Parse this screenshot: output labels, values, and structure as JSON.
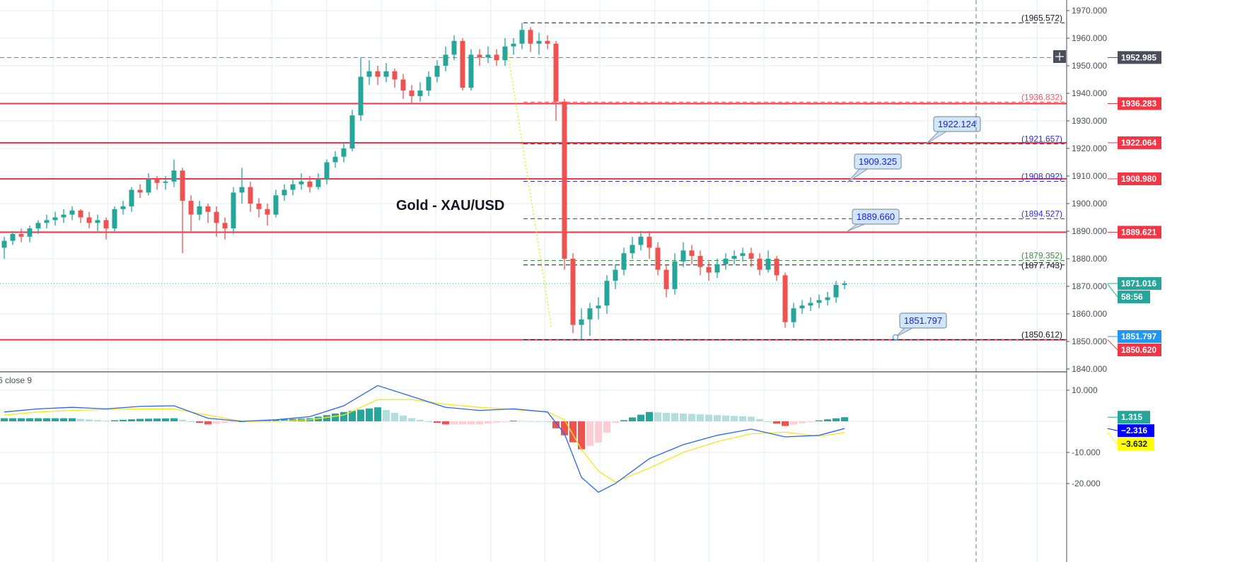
{
  "chart_data": [
    {
      "type": "candlestick",
      "title": "Gold - XAU/USD",
      "ylim": [
        1835,
        1972
      ],
      "y_ticks": [
        "1970.000",
        "1960.000",
        "1950.000",
        "1940.000",
        "1930.000",
        "1920.000",
        "1910.000",
        "1900.000",
        "1890.000",
        "1880.000",
        "1870.000",
        "1860.000",
        "1850.000",
        "1840.000"
      ],
      "grid": true,
      "colors": {
        "up": "#26a69a",
        "down": "#ef5350"
      },
      "ohlc": [
        [
          1884,
          1888,
          1880,
          1886.5
        ],
        [
          1886.5,
          1890,
          1885,
          1889
        ],
        [
          1889,
          1891,
          1886,
          1888
        ],
        [
          1888,
          1892,
          1886,
          1891
        ],
        [
          1891,
          1894,
          1889,
          1893
        ],
        [
          1893,
          1896,
          1891,
          1894
        ],
        [
          1894,
          1897,
          1892,
          1895
        ],
        [
          1895,
          1898,
          1893,
          1896
        ],
        [
          1896,
          1899,
          1894,
          1897.5
        ],
        [
          1897.5,
          1898,
          1893,
          1895
        ],
        [
          1895,
          1897,
          1891,
          1893
        ],
        [
          1893,
          1896,
          1890,
          1894
        ],
        [
          1894,
          1895,
          1887,
          1891
        ],
        [
          1891,
          1899,
          1890,
          1898
        ],
        [
          1898,
          1901,
          1896,
          1899
        ],
        [
          1899,
          1906,
          1897,
          1905
        ],
        [
          1905,
          1907,
          1902,
          1904
        ],
        [
          1904,
          1911,
          1903,
          1909
        ],
        [
          1909,
          1910,
          1905,
          1907.5
        ],
        [
          1907.5,
          1910,
          1905,
          1908
        ],
        [
          1908,
          1916,
          1906,
          1912
        ],
        [
          1912,
          1913,
          1882,
          1901
        ],
        [
          1901,
          1903,
          1890,
          1896
        ],
        [
          1896,
          1901,
          1894,
          1899
        ],
        [
          1899,
          1900,
          1893,
          1897
        ],
        [
          1897,
          1899,
          1888,
          1893
        ],
        [
          1893,
          1895,
          1887,
          1891
        ],
        [
          1891,
          1906,
          1889,
          1904
        ],
        [
          1904,
          1913,
          1900,
          1906
        ],
        [
          1906,
          1908,
          1897,
          1900
        ],
        [
          1900,
          1902,
          1895,
          1898
        ],
        [
          1898,
          1900,
          1892,
          1896
        ],
        [
          1896,
          1905,
          1895,
          1903
        ],
        [
          1903,
          1907,
          1901,
          1905
        ],
        [
          1905,
          1909,
          1903,
          1907
        ],
        [
          1907,
          1911,
          1905,
          1908
        ],
        [
          1908,
          1910,
          1904,
          1906
        ],
        [
          1906,
          1911,
          1905,
          1909
        ],
        [
          1909,
          1916,
          1907,
          1915
        ],
        [
          1915,
          1919,
          1913,
          1917
        ],
        [
          1917,
          1922,
          1915,
          1920
        ],
        [
          1920,
          1934,
          1919,
          1932
        ],
        [
          1932,
          1953,
          1930,
          1946
        ],
        [
          1946,
          1952,
          1943,
          1948
        ],
        [
          1948,
          1950,
          1943,
          1946
        ],
        [
          1946,
          1951,
          1944,
          1948
        ],
        [
          1948,
          1949,
          1942,
          1945
        ],
        [
          1945,
          1947,
          1938,
          1941
        ],
        [
          1941,
          1943,
          1936,
          1939
        ],
        [
          1939,
          1944,
          1937,
          1941
        ],
        [
          1941,
          1948,
          1939,
          1946
        ],
        [
          1946,
          1952,
          1944,
          1950
        ],
        [
          1950,
          1957,
          1948,
          1954
        ],
        [
          1954,
          1961,
          1952,
          1959
        ],
        [
          1959,
          1960,
          1941,
          1942
        ],
        [
          1942,
          1956,
          1941,
          1954
        ],
        [
          1954,
          1956,
          1950,
          1953
        ],
        [
          1953,
          1957,
          1951,
          1954
        ],
        [
          1954,
          1956,
          1950,
          1952
        ],
        [
          1952,
          1960,
          1950,
          1957
        ],
        [
          1957,
          1960,
          1954,
          1958
        ],
        [
          1958,
          1965.572,
          1956,
          1963
        ],
        [
          1963,
          1964,
          1955,
          1958
        ],
        [
          1958,
          1962,
          1954,
          1959
        ],
        [
          1959,
          1961,
          1956,
          1958
        ],
        [
          1958,
          1959,
          1930,
          1937
        ],
        [
          1937,
          1938,
          1876,
          1880
        ],
        [
          1880,
          1882,
          1853,
          1856
        ],
        [
          1856,
          1862,
          1850.612,
          1858
        ],
        [
          1858,
          1864,
          1852,
          1862
        ],
        [
          1862,
          1866,
          1858,
          1863
        ],
        [
          1863,
          1874,
          1860,
          1872
        ],
        [
          1872,
          1878,
          1869,
          1876
        ],
        [
          1876,
          1884,
          1874,
          1882
        ],
        [
          1882,
          1888,
          1880,
          1885
        ],
        [
          1885,
          1890,
          1883,
          1888
        ],
        [
          1888,
          1890,
          1880,
          1884
        ],
        [
          1884,
          1886,
          1874,
          1876
        ],
        [
          1876,
          1878,
          1866,
          1869
        ],
        [
          1869,
          1882,
          1867,
          1879
        ],
        [
          1879,
          1886,
          1877,
          1883
        ],
        [
          1883,
          1885,
          1878,
          1881
        ],
        [
          1881,
          1883,
          1874,
          1877
        ],
        [
          1877,
          1879,
          1872,
          1875
        ],
        [
          1875,
          1880,
          1873,
          1878
        ],
        [
          1878,
          1882,
          1876,
          1880
        ],
        [
          1880,
          1883,
          1878,
          1881
        ],
        [
          1881,
          1884,
          1879,
          1882
        ],
        [
          1882,
          1884,
          1877,
          1880
        ],
        [
          1880,
          1882,
          1874,
          1876
        ],
        [
          1876,
          1883,
          1875,
          1880
        ],
        [
          1880,
          1881,
          1872,
          1874
        ],
        [
          1874,
          1875,
          1855,
          1857
        ],
        [
          1857,
          1864,
          1855,
          1862
        ],
        [
          1862,
          1865,
          1860,
          1863
        ],
        [
          1863,
          1866,
          1861,
          1864
        ],
        [
          1864,
          1867,
          1862,
          1865
        ],
        [
          1865,
          1868,
          1863,
          1866
        ],
        [
          1866,
          1872,
          1864,
          1870.5
        ],
        [
          1870.5,
          1872,
          1869,
          1871.016
        ]
      ]
    },
    {
      "type": "line",
      "legend_text": "6 close 9",
      "ylim": [
        -25,
        15
      ],
      "y_ticks": [
        "10.000",
        "-10.000",
        "-20.000"
      ],
      "series_colors": {
        "macd": "#2962ff",
        "signal": "#f5e71d"
      },
      "hist_colors": {
        "pos_up": "#26a69a",
        "pos_down": "#b2dfdb",
        "neg_down": "#ef5350",
        "neg_up": "#ffcdd2"
      },
      "index": [
        0,
        4,
        8,
        12,
        16,
        20,
        24,
        28,
        32,
        36,
        40,
        44,
        48,
        52,
        56,
        60,
        64,
        66,
        68,
        70,
        72,
        76,
        80,
        84,
        88,
        92,
        96,
        99
      ],
      "macd": [
        3,
        4,
        4.5,
        4,
        4.8,
        5,
        1,
        0,
        0.5,
        1.5,
        5,
        11.5,
        8,
        4.5,
        3.5,
        4,
        3,
        -4,
        -18,
        -22.8,
        -20,
        -12,
        -7.5,
        -4.5,
        -2.5,
        -5,
        -4.5,
        -2.316
      ],
      "signal": [
        2,
        3,
        3.5,
        3.8,
        4,
        4,
        2,
        0,
        0,
        0.5,
        2,
        7,
        7,
        5.5,
        4.5,
        3.8,
        3,
        0.5,
        -9,
        -16,
        -19.5,
        -15,
        -10,
        -6.5,
        -4,
        -3.5,
        -4.8,
        -3.632
      ],
      "last_values": {
        "histogram": "1.315",
        "macd": "−2.316",
        "signal": "−3.632"
      }
    }
  ],
  "price_axis_tags": [
    {
      "text": "1952.985",
      "price": 1952.985,
      "bg": "#4a4e5a",
      "kind": "crosshair"
    },
    {
      "text": "1936.283",
      "price": 1936.283,
      "bg": "#f23645"
    },
    {
      "text": "1922.064",
      "price": 1922.064,
      "bg": "#f23645"
    },
    {
      "text": "1908.980",
      "price": 1908.98,
      "bg": "#f23645"
    },
    {
      "text": "1889.621",
      "price": 1889.621,
      "bg": "#f23645"
    },
    {
      "text": "1871.016",
      "price": 1871.016,
      "bg": "#26a69a"
    },
    {
      "text": "1851.797",
      "price": 1851.797,
      "bg": "#2196f3"
    },
    {
      "text": "1850.620",
      "price": 1850.62,
      "bg": "#f23645"
    }
  ],
  "countdown": "58:56",
  "horizontal_lines": [
    1936.283,
    1922.064,
    1908.98,
    1889.621,
    1850.62
  ],
  "level_lines": [
    {
      "text": "(1965.572)",
      "price": 1965.572,
      "color": "#131722"
    },
    {
      "text": "(1936.832)",
      "price": 1936.832,
      "color": "#f7525f"
    },
    {
      "text": "(1921.657)",
      "price": 1921.657,
      "color": "#2b2bf0"
    },
    {
      "text": "(1908.092)",
      "price": 1908.092,
      "color": "#2b2bf0"
    },
    {
      "text": "(1894.527)",
      "price": 1894.527,
      "color": "#2b2bf0"
    },
    {
      "text": "(1879.352)",
      "price": 1879.352,
      "color": "#388e3c"
    },
    {
      "text": "(1877.743)",
      "price": 1877.743,
      "color": "#131722"
    },
    {
      "text": "(1850.612)",
      "price": 1850.612,
      "color": "#131722"
    }
  ],
  "callouts": [
    {
      "text": "1922.124",
      "price": 1922.124
    },
    {
      "text": "1909.325",
      "price": 1909.325
    },
    {
      "text": "1889.660",
      "price": 1889.66
    },
    {
      "text": "1851.797",
      "price": 1851.797
    }
  ],
  "icons": {
    "crosshair": "plus-icon"
  }
}
